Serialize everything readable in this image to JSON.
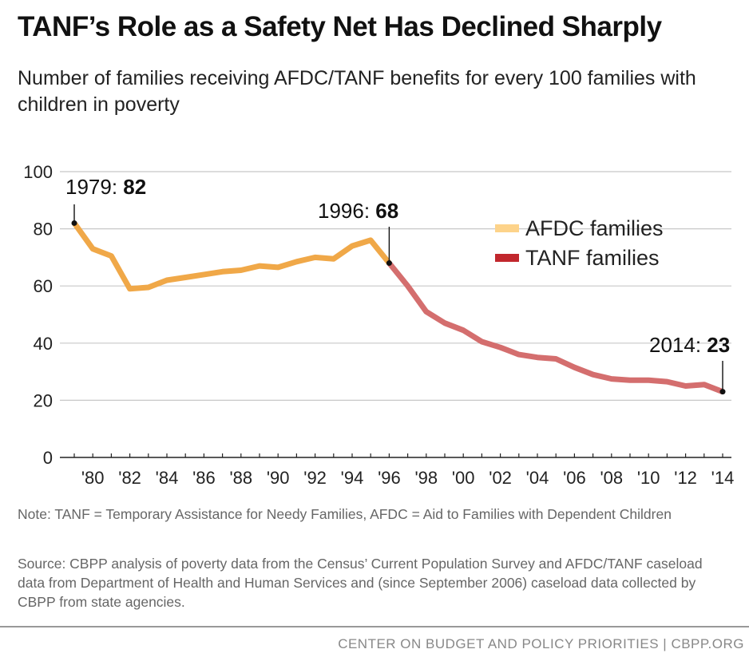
{
  "title": "TANF’s Role as a Safety Net Has Declined Sharply",
  "subtitle": "Number of families receiving AFDC/TANF benefits for every 100 families with children in poverty",
  "note": "Note: TANF = Temporary Assistance for Needy Families, AFDC = Aid to Families with Dependent Children",
  "source": "Source: CBPP analysis of poverty data from the Census’ Current Population Survey and AFDC/TANF caseload data from Department of Health and Human Services and (since September 2006) caseload data collected by CBPP from state agencies.",
  "footer": "CENTER ON BUDGET AND POLICY PRIORITIES | CBPP.ORG",
  "chart_data": {
    "type": "line",
    "title": "TANF’s Role as a Safety Net Has Declined Sharply",
    "xlabel": "",
    "ylabel": "",
    "xlim": [
      1979,
      2014
    ],
    "ylim": [
      0,
      100
    ],
    "yticks": [
      0,
      20,
      40,
      60,
      80,
      100
    ],
    "xticks": [
      1980,
      1982,
      1984,
      1986,
      1988,
      1990,
      1992,
      1994,
      1996,
      1998,
      2000,
      2002,
      2004,
      2006,
      2008,
      2010,
      2012,
      2014
    ],
    "xtick_labels": [
      "'80",
      "'82",
      "'84",
      "'86",
      "'88",
      "'90",
      "'92",
      "'94",
      "'96",
      "'98",
      "'00",
      "'02",
      "'04",
      "'06",
      "'08",
      "'10",
      "'12",
      "'14"
    ],
    "grid": true,
    "legend_position": "top-right",
    "series": [
      {
        "name": "AFDC families",
        "color": "#F0A848",
        "legend_color": "#FDD38A",
        "x": [
          1979,
          1980,
          1981,
          1982,
          1983,
          1984,
          1985,
          1986,
          1987,
          1988,
          1989,
          1990,
          1991,
          1992,
          1993,
          1994,
          1995,
          1996
        ],
        "y": [
          82,
          73,
          70.5,
          59,
          59.5,
          62,
          63,
          64,
          65,
          65.5,
          67,
          66.5,
          68.5,
          70,
          69.5,
          74,
          76,
          68
        ]
      },
      {
        "name": "TANF families",
        "color": "#D46E6E",
        "legend_color": "#C1272D",
        "x": [
          1996,
          1997,
          1998,
          1999,
          2000,
          2001,
          2002,
          2003,
          2004,
          2005,
          2006,
          2007,
          2008,
          2009,
          2010,
          2011,
          2012,
          2013,
          2014
        ],
        "y": [
          68,
          60,
          51,
          47,
          44.5,
          40.5,
          38.5,
          36,
          35,
          34.5,
          31.5,
          29,
          27.5,
          27,
          27,
          26.5,
          25,
          25.5,
          23
        ]
      }
    ],
    "annotations": [
      {
        "year_label": "1979:",
        "value_label": "82",
        "x": 1979,
        "y": 82
      },
      {
        "year_label": "1996:",
        "value_label": "68",
        "x": 1996,
        "y": 68
      },
      {
        "year_label": "2014:",
        "value_label": "23",
        "x": 2014,
        "y": 23
      }
    ]
  }
}
